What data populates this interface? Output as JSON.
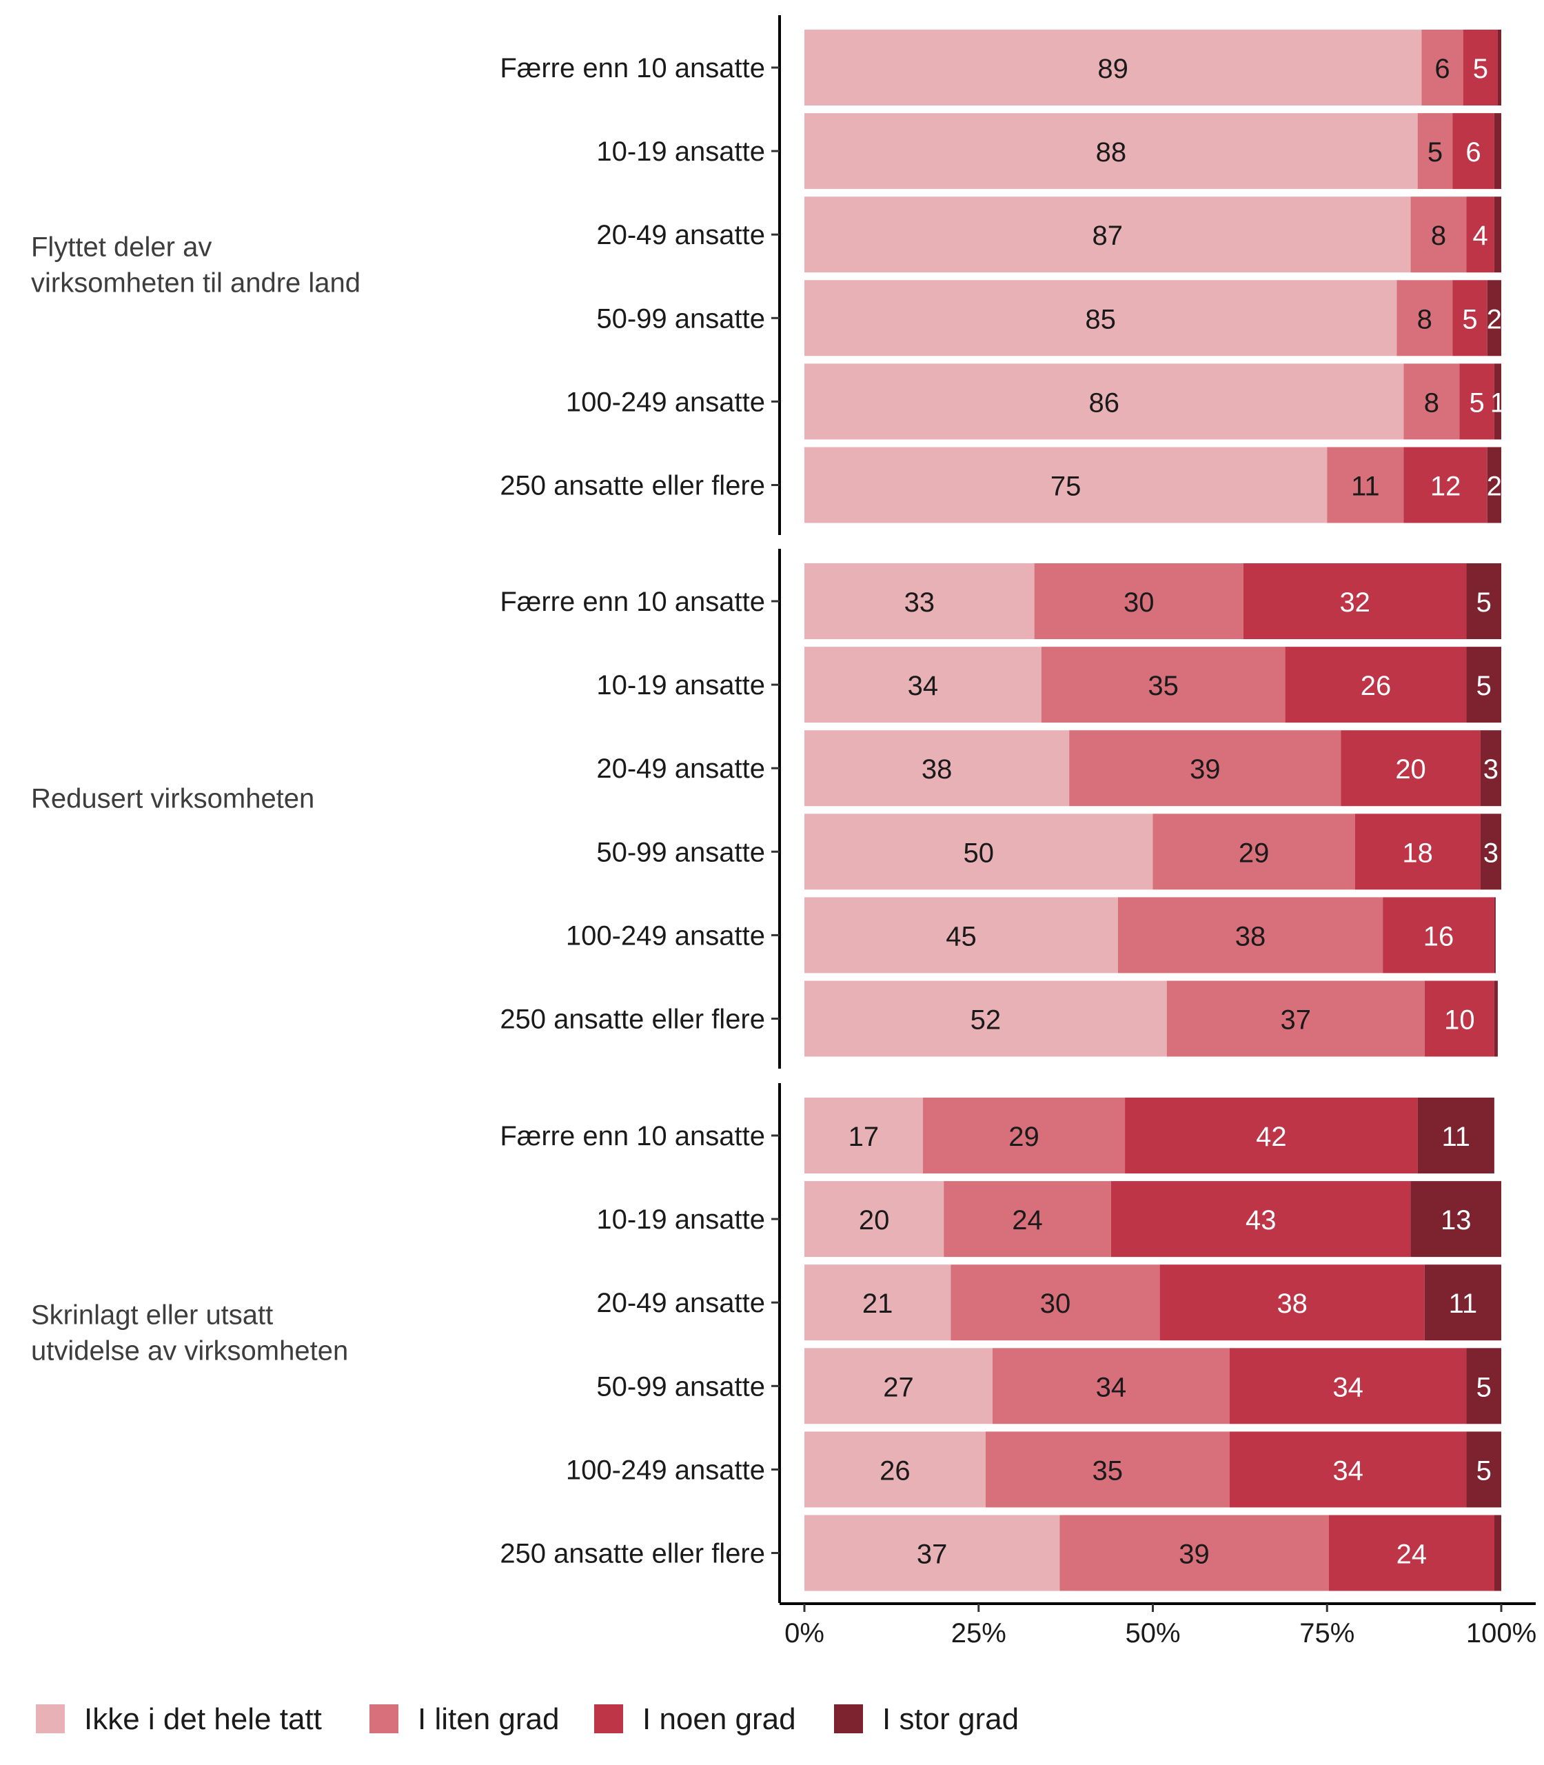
{
  "chart_data": {
    "type": "bar",
    "orientation": "horizontal",
    "stacked": "percent",
    "categories": [
      "Færre enn 10 ansatte",
      "10-19 ansatte",
      "20-49 ansatte",
      "50-99 ansatte",
      "100-249 ansatte",
      "250 ansatte eller flere"
    ],
    "legend": [
      {
        "name": "Ikke i det hele tatt",
        "color": "#e8b1b6"
      },
      {
        "name": "I liten grad",
        "color": "#d7707b"
      },
      {
        "name": "I noen grad",
        "color": "#be3548"
      },
      {
        "name": "I stor grad",
        "color": "#7d2330"
      }
    ],
    "legend_position": "bottom",
    "x_ticks": [
      "0%",
      "25%",
      "50%",
      "75%",
      "100%"
    ],
    "xlim": [
      0,
      100
    ],
    "grid": false,
    "groups": [
      {
        "name": "Flyttet deler av virksomheten til andre land",
        "rows": [
          {
            "values": [
              89,
              6,
              5,
              0.5
            ],
            "labels": [
              "89",
              "6",
              "5",
              ""
            ]
          },
          {
            "values": [
              88,
              5,
              6,
              1
            ],
            "labels": [
              "88",
              "5",
              "6",
              ""
            ]
          },
          {
            "values": [
              87,
              8,
              4,
              1
            ],
            "labels": [
              "87",
              "8",
              "4",
              ""
            ]
          },
          {
            "values": [
              85,
              8,
              5,
              2
            ],
            "labels": [
              "85",
              "8",
              "5",
              "2"
            ]
          },
          {
            "values": [
              86,
              8,
              5,
              1
            ],
            "labels": [
              "86",
              "8",
              "5",
              "1"
            ]
          },
          {
            "values": [
              75,
              11,
              12,
              2
            ],
            "labels": [
              "75",
              "11",
              "12",
              "2"
            ]
          }
        ]
      },
      {
        "name": "Redusert virksomheten",
        "rows": [
          {
            "values": [
              33,
              30,
              32,
              5
            ],
            "labels": [
              "33",
              "30",
              "32",
              "5"
            ]
          },
          {
            "values": [
              34,
              35,
              26,
              5
            ],
            "labels": [
              "34",
              "35",
              "26",
              "5"
            ]
          },
          {
            "values": [
              38,
              39,
              20,
              3
            ],
            "labels": [
              "38",
              "39",
              "20",
              "3"
            ]
          },
          {
            "values": [
              50,
              29,
              18,
              3
            ],
            "labels": [
              "50",
              "29",
              "18",
              "3"
            ]
          },
          {
            "values": [
              45,
              38,
              16,
              0.2
            ],
            "labels": [
              "45",
              "38",
              "16",
              ""
            ]
          },
          {
            "values": [
              52,
              37,
              10,
              0.5
            ],
            "labels": [
              "52",
              "37",
              "10",
              ""
            ]
          }
        ]
      },
      {
        "name": "Skrinlagt eller utsatt utvidelse av virksomheten",
        "rows": [
          {
            "values": [
              17,
              29,
              42,
              11
            ],
            "labels": [
              "17",
              "29",
              "42",
              "11"
            ]
          },
          {
            "values": [
              20,
              24,
              43,
              13
            ],
            "labels": [
              "20",
              "24",
              "43",
              "13"
            ]
          },
          {
            "values": [
              21,
              30,
              38,
              11
            ],
            "labels": [
              "21",
              "30",
              "38",
              "11"
            ]
          },
          {
            "values": [
              27,
              34,
              34,
              5
            ],
            "labels": [
              "27",
              "34",
              "34",
              "5"
            ]
          },
          {
            "values": [
              26,
              35,
              34,
              5
            ],
            "labels": [
              "26",
              "35",
              "34",
              "5"
            ]
          },
          {
            "values": [
              37,
              39,
              24,
              1
            ],
            "labels": [
              "37",
              "39",
              "24",
              ""
            ]
          }
        ]
      }
    ]
  }
}
